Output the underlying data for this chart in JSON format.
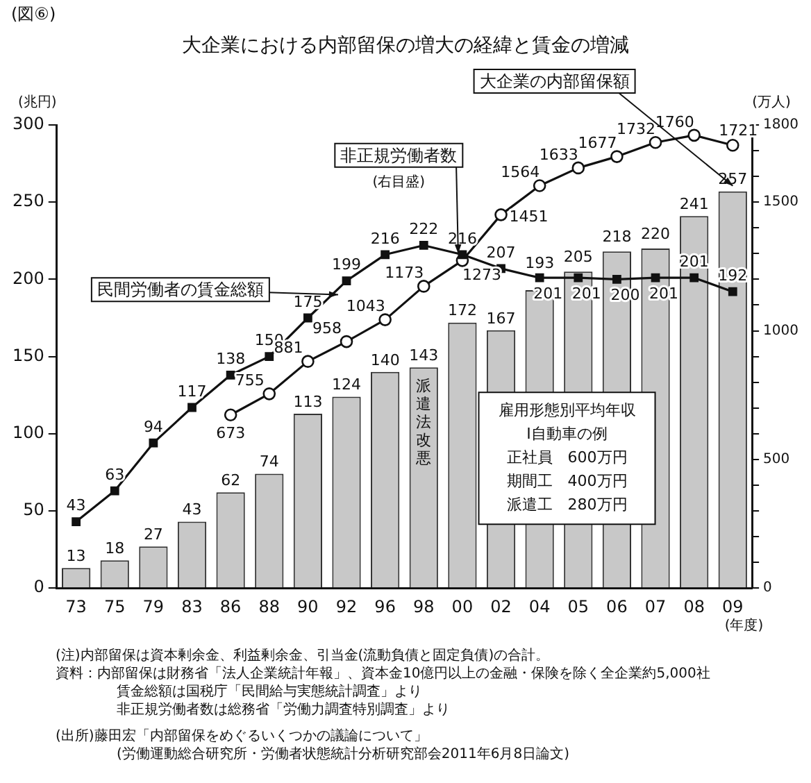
{
  "chart_data": {
    "type": "bar",
    "title": "大企業における内部留保の増大の経緯と賃金の増減",
    "categories": [
      "73",
      "75",
      "79",
      "83",
      "86",
      "88",
      "90",
      "92",
      "96",
      "98",
      "00",
      "02",
      "04",
      "05",
      "06",
      "07",
      "08",
      "09"
    ],
    "xlabel": "(年度)",
    "ylabel": "(兆円)",
    "y2label": "(万人)",
    "series": [
      {
        "name": "大企業の内部留保額",
        "color": "#c8c8c8",
        "values": [
          13,
          18,
          27,
          43,
          62,
          74,
          113,
          124,
          140,
          143,
          172,
          167,
          193,
          205,
          218,
          220,
          241,
          257
        ]
      },
      {
        "name": "民間労働者の賃金総額",
        "type": "line",
        "color": "#111111",
        "marker": "square",
        "values": [
          43,
          63,
          94,
          117,
          138,
          150,
          175,
          199,
          216,
          222,
          216,
          207,
          201,
          201,
          200,
          201,
          201,
          192
        ]
      },
      {
        "name": "非正規労働者数",
        "type": "line",
        "axis": "y2",
        "color": "#111111",
        "marker": "circle",
        "values": [
          null,
          null,
          null,
          null,
          673,
          755,
          881,
          958,
          1043,
          1173,
          1273,
          1451,
          1564,
          1633,
          1677,
          1732,
          1760,
          1721
        ]
      }
    ],
    "ylim": [
      0,
      300
    ],
    "yticks": [
      0,
      50,
      100,
      150,
      200,
      250,
      300
    ],
    "y2lim": [
      0,
      1800
    ],
    "y2ticks": [
      0,
      {
        "value": 100,
        "label": null
      },
      {
        "value": 200,
        "label": null
      },
      {
        "value": 300,
        "label": null
      },
      {
        "value": 400,
        "label": null
      },
      500,
      {
        "value": 600,
        "label": null
      },
      {
        "value": 700,
        "label": null
      },
      {
        "value": 800,
        "label": null
      },
      {
        "value": 900,
        "label": null
      },
      1000,
      {
        "value": 1100,
        "label": null
      },
      {
        "value": 1200,
        "label": null
      },
      {
        "value": 1300,
        "label": null
      },
      {
        "value": 1400,
        "label": null
      },
      1500,
      {
        "value": 1600,
        "label": null
      },
      {
        "value": 1700,
        "label": null
      },
      1800
    ],
    "data_labels": true,
    "legend": false,
    "grid": false,
    "annotations": [
      "(図⑥)",
      "(右目盛)",
      "派遣法改悪",
      "雇用形態別平均年収",
      "I自動車の例",
      "正社員　600万円",
      "期間工　400万円",
      "派遣工　280万円",
      "(注)内部留保は資本剰余金、利益剰余金、引当金(流動負債と固定負債)の合計。",
      "資料：内部留保は財務省「法人企業統計年報」、資本金10億円以上の金融・保険を除く全企業約5,000社",
      "賃金総額は国税庁「民間給与実態統計調査」より",
      "非正規労働者数は総務省「労働力調査特別調査」より",
      "(出所)藤田宏「内部留保をめぐるいくつかの議論について」",
      "(労働運動総合研究所・労働者状態統計分析研究部会2011年6月8日論文)"
    ]
  }
}
